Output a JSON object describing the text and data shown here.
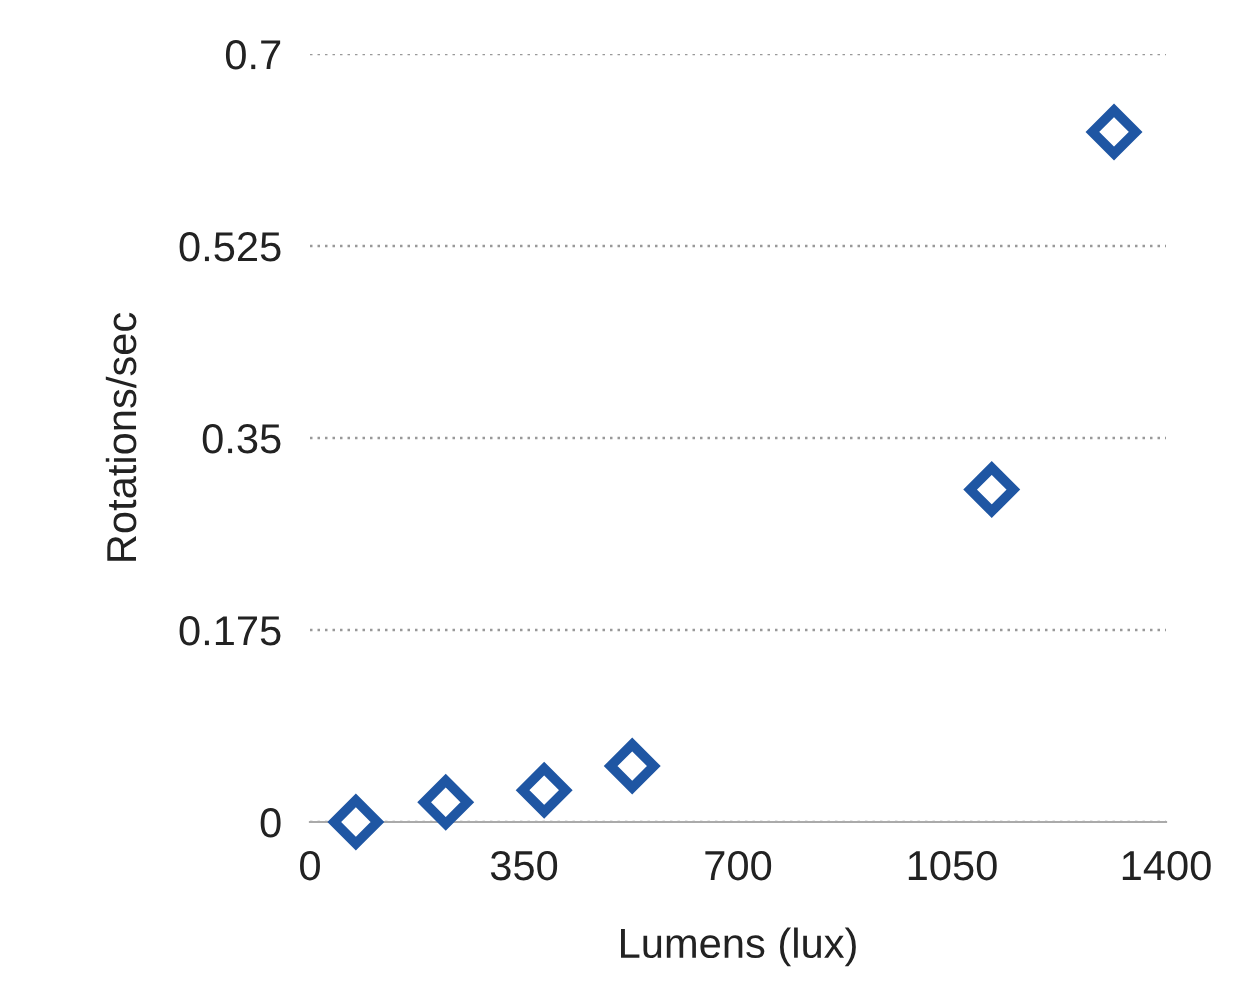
{
  "chart_data": {
    "type": "scatter",
    "xlabel": "Lumens (lux)",
    "ylabel": "Rotations/sec",
    "x": [
      75,
      222,
      383,
      527,
      1115,
      1315
    ],
    "series": [
      {
        "color": "#1f56a3",
        "values": [
          0,
          0.018,
          0.029,
          0.051,
          0.303,
          0.629
        ]
      }
    ],
    "xlim": [
      0,
      1400
    ],
    "xticks": [
      0,
      350,
      700,
      1050,
      1400
    ],
    "ylim": [
      0,
      0.7
    ],
    "yticks": [
      0,
      0.175,
      0.35,
      0.525,
      0.7
    ],
    "grid": "y",
    "marker": "diamond"
  }
}
